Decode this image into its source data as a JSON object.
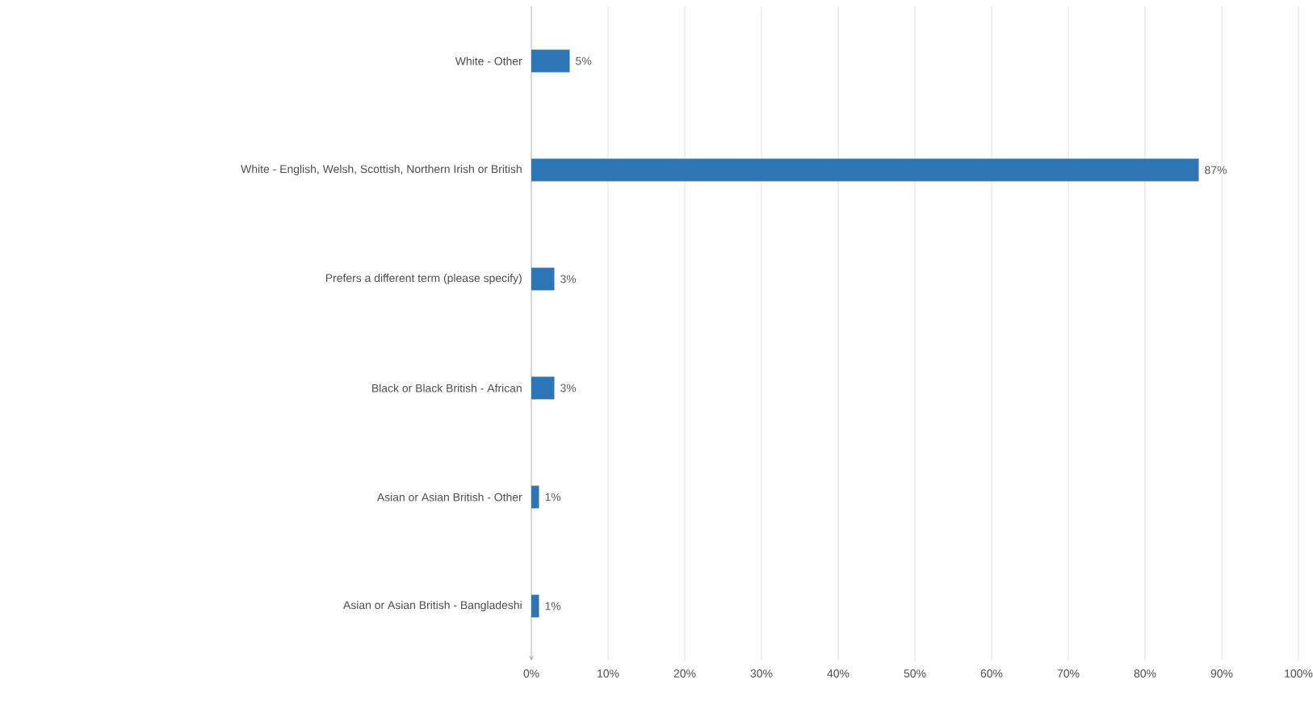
{
  "chart_data": {
    "type": "bar",
    "orientation": "horizontal",
    "categories": [
      "White - Other",
      "White - English, Welsh, Scottish, Northern Irish or British",
      "Prefers a different term (please specify)",
      "Black or Black British - African",
      "Asian or Asian British - Other",
      "Asian or Asian British - Bangladeshi"
    ],
    "values": [
      5,
      87,
      3,
      3,
      1,
      1
    ],
    "value_labels": [
      "5%",
      "87%",
      "3%",
      "3%",
      "1%",
      "1%"
    ],
    "color": "#2e75b6",
    "xlim": [
      0,
      100
    ],
    "xticks": [
      {
        "value": 0,
        "label": "0%"
      },
      {
        "value": 10,
        "label": "10%"
      },
      {
        "value": 20,
        "label": "20%"
      },
      {
        "value": 30,
        "label": "30%"
      },
      {
        "value": 40,
        "label": "40%"
      },
      {
        "value": 50,
        "label": "50%"
      },
      {
        "value": 60,
        "label": "60%"
      },
      {
        "value": 70,
        "label": "70%"
      },
      {
        "value": 80,
        "label": "80%"
      },
      {
        "value": 90,
        "label": "90%"
      },
      {
        "value": 100,
        "label": "100%"
      }
    ],
    "grid": "x"
  }
}
